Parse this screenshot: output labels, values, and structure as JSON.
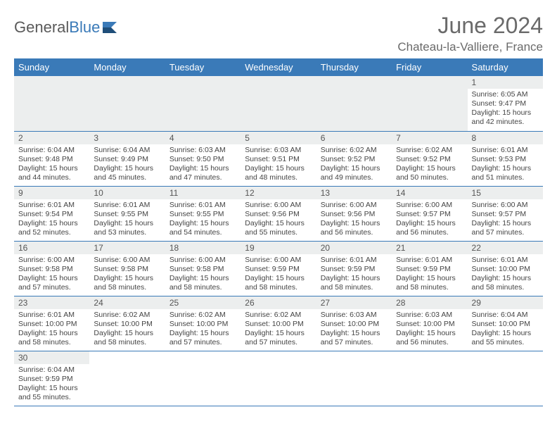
{
  "brand": {
    "name_gray": "General",
    "name_blue": "Blue"
  },
  "title": "June 2024",
  "location": "Chateau-la-Valliere, France",
  "colors": {
    "header_bg": "#3a7ab8",
    "header_text": "#ffffff",
    "daynum_bg": "#eceeee",
    "border": "#3a7ab8",
    "text": "#444444",
    "title_text": "#6a6a6a"
  },
  "weekdays": [
    "Sunday",
    "Monday",
    "Tuesday",
    "Wednesday",
    "Thursday",
    "Friday",
    "Saturday"
  ],
  "weeks": [
    [
      null,
      null,
      null,
      null,
      null,
      null,
      {
        "n": "1",
        "sr": "Sunrise: 6:05 AM",
        "ss": "Sunset: 9:47 PM",
        "d1": "Daylight: 15 hours",
        "d2": "and 42 minutes."
      }
    ],
    [
      {
        "n": "2",
        "sr": "Sunrise: 6:04 AM",
        "ss": "Sunset: 9:48 PM",
        "d1": "Daylight: 15 hours",
        "d2": "and 44 minutes."
      },
      {
        "n": "3",
        "sr": "Sunrise: 6:04 AM",
        "ss": "Sunset: 9:49 PM",
        "d1": "Daylight: 15 hours",
        "d2": "and 45 minutes."
      },
      {
        "n": "4",
        "sr": "Sunrise: 6:03 AM",
        "ss": "Sunset: 9:50 PM",
        "d1": "Daylight: 15 hours",
        "d2": "and 47 minutes."
      },
      {
        "n": "5",
        "sr": "Sunrise: 6:03 AM",
        "ss": "Sunset: 9:51 PM",
        "d1": "Daylight: 15 hours",
        "d2": "and 48 minutes."
      },
      {
        "n": "6",
        "sr": "Sunrise: 6:02 AM",
        "ss": "Sunset: 9:52 PM",
        "d1": "Daylight: 15 hours",
        "d2": "and 49 minutes."
      },
      {
        "n": "7",
        "sr": "Sunrise: 6:02 AM",
        "ss": "Sunset: 9:52 PM",
        "d1": "Daylight: 15 hours",
        "d2": "and 50 minutes."
      },
      {
        "n": "8",
        "sr": "Sunrise: 6:01 AM",
        "ss": "Sunset: 9:53 PM",
        "d1": "Daylight: 15 hours",
        "d2": "and 51 minutes."
      }
    ],
    [
      {
        "n": "9",
        "sr": "Sunrise: 6:01 AM",
        "ss": "Sunset: 9:54 PM",
        "d1": "Daylight: 15 hours",
        "d2": "and 52 minutes."
      },
      {
        "n": "10",
        "sr": "Sunrise: 6:01 AM",
        "ss": "Sunset: 9:55 PM",
        "d1": "Daylight: 15 hours",
        "d2": "and 53 minutes."
      },
      {
        "n": "11",
        "sr": "Sunrise: 6:01 AM",
        "ss": "Sunset: 9:55 PM",
        "d1": "Daylight: 15 hours",
        "d2": "and 54 minutes."
      },
      {
        "n": "12",
        "sr": "Sunrise: 6:00 AM",
        "ss": "Sunset: 9:56 PM",
        "d1": "Daylight: 15 hours",
        "d2": "and 55 minutes."
      },
      {
        "n": "13",
        "sr": "Sunrise: 6:00 AM",
        "ss": "Sunset: 9:56 PM",
        "d1": "Daylight: 15 hours",
        "d2": "and 56 minutes."
      },
      {
        "n": "14",
        "sr": "Sunrise: 6:00 AM",
        "ss": "Sunset: 9:57 PM",
        "d1": "Daylight: 15 hours",
        "d2": "and 56 minutes."
      },
      {
        "n": "15",
        "sr": "Sunrise: 6:00 AM",
        "ss": "Sunset: 9:57 PM",
        "d1": "Daylight: 15 hours",
        "d2": "and 57 minutes."
      }
    ],
    [
      {
        "n": "16",
        "sr": "Sunrise: 6:00 AM",
        "ss": "Sunset: 9:58 PM",
        "d1": "Daylight: 15 hours",
        "d2": "and 57 minutes."
      },
      {
        "n": "17",
        "sr": "Sunrise: 6:00 AM",
        "ss": "Sunset: 9:58 PM",
        "d1": "Daylight: 15 hours",
        "d2": "and 58 minutes."
      },
      {
        "n": "18",
        "sr": "Sunrise: 6:00 AM",
        "ss": "Sunset: 9:58 PM",
        "d1": "Daylight: 15 hours",
        "d2": "and 58 minutes."
      },
      {
        "n": "19",
        "sr": "Sunrise: 6:00 AM",
        "ss": "Sunset: 9:59 PM",
        "d1": "Daylight: 15 hours",
        "d2": "and 58 minutes."
      },
      {
        "n": "20",
        "sr": "Sunrise: 6:01 AM",
        "ss": "Sunset: 9:59 PM",
        "d1": "Daylight: 15 hours",
        "d2": "and 58 minutes."
      },
      {
        "n": "21",
        "sr": "Sunrise: 6:01 AM",
        "ss": "Sunset: 9:59 PM",
        "d1": "Daylight: 15 hours",
        "d2": "and 58 minutes."
      },
      {
        "n": "22",
        "sr": "Sunrise: 6:01 AM",
        "ss": "Sunset: 10:00 PM",
        "d1": "Daylight: 15 hours",
        "d2": "and 58 minutes."
      }
    ],
    [
      {
        "n": "23",
        "sr": "Sunrise: 6:01 AM",
        "ss": "Sunset: 10:00 PM",
        "d1": "Daylight: 15 hours",
        "d2": "and 58 minutes."
      },
      {
        "n": "24",
        "sr": "Sunrise: 6:02 AM",
        "ss": "Sunset: 10:00 PM",
        "d1": "Daylight: 15 hours",
        "d2": "and 58 minutes."
      },
      {
        "n": "25",
        "sr": "Sunrise: 6:02 AM",
        "ss": "Sunset: 10:00 PM",
        "d1": "Daylight: 15 hours",
        "d2": "and 57 minutes."
      },
      {
        "n": "26",
        "sr": "Sunrise: 6:02 AM",
        "ss": "Sunset: 10:00 PM",
        "d1": "Daylight: 15 hours",
        "d2": "and 57 minutes."
      },
      {
        "n": "27",
        "sr": "Sunrise: 6:03 AM",
        "ss": "Sunset: 10:00 PM",
        "d1": "Daylight: 15 hours",
        "d2": "and 57 minutes."
      },
      {
        "n": "28",
        "sr": "Sunrise: 6:03 AM",
        "ss": "Sunset: 10:00 PM",
        "d1": "Daylight: 15 hours",
        "d2": "and 56 minutes."
      },
      {
        "n": "29",
        "sr": "Sunrise: 6:04 AM",
        "ss": "Sunset: 10:00 PM",
        "d1": "Daylight: 15 hours",
        "d2": "and 55 minutes."
      }
    ],
    [
      {
        "n": "30",
        "sr": "Sunrise: 6:04 AM",
        "ss": "Sunset: 9:59 PM",
        "d1": "Daylight: 15 hours",
        "d2": "and 55 minutes."
      },
      null,
      null,
      null,
      null,
      null,
      null
    ]
  ]
}
